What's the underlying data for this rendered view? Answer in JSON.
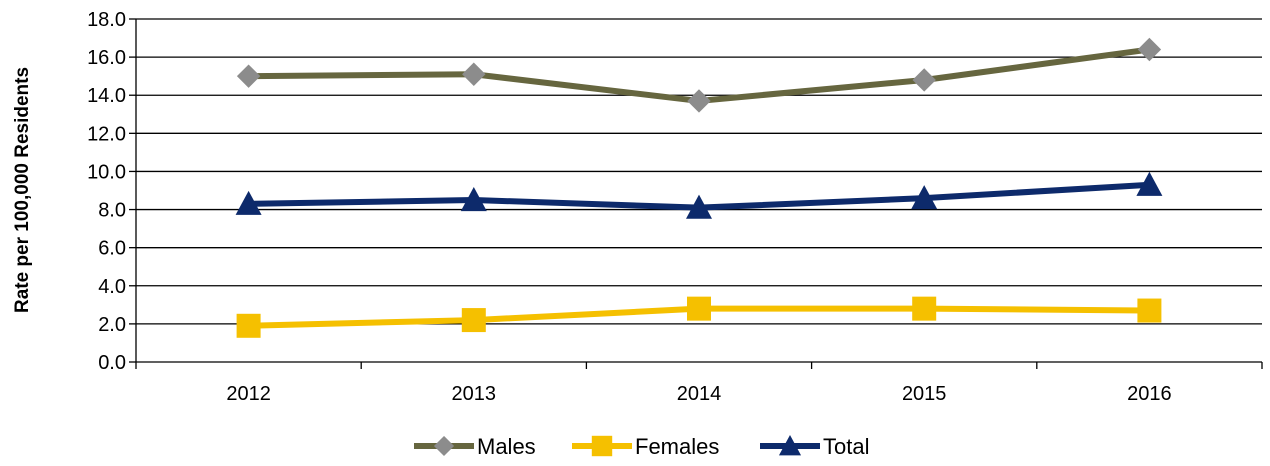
{
  "chart_data": {
    "type": "line",
    "categories": [
      "2012",
      "2013",
      "2014",
      "2015",
      "2016"
    ],
    "series": [
      {
        "name": "Males",
        "values": [
          15.0,
          15.1,
          13.7,
          14.8,
          16.4
        ],
        "color": "#66663f",
        "marker": "diamond",
        "marker_color": "#8c8c8c"
      },
      {
        "name": "Females",
        "values": [
          1.9,
          2.2,
          2.8,
          2.8,
          2.7
        ],
        "color": "#f5c000",
        "marker": "square",
        "marker_color": "#f5c000"
      },
      {
        "name": "Total",
        "values": [
          8.3,
          8.5,
          8.1,
          8.6,
          9.3
        ],
        "color": "#0d2a6b",
        "marker": "triangle",
        "marker_color": "#0d2a6b"
      }
    ],
    "ylabel": "Rate per 100,000 Residents",
    "xlabel": "",
    "ylim": [
      0,
      18
    ],
    "yticks": [
      "0.0",
      "2.0",
      "4.0",
      "6.0",
      "8.0",
      "10.0",
      "12.0",
      "14.0",
      "16.0",
      "18.0"
    ],
    "grid": true,
    "legend_position": "bottom"
  }
}
